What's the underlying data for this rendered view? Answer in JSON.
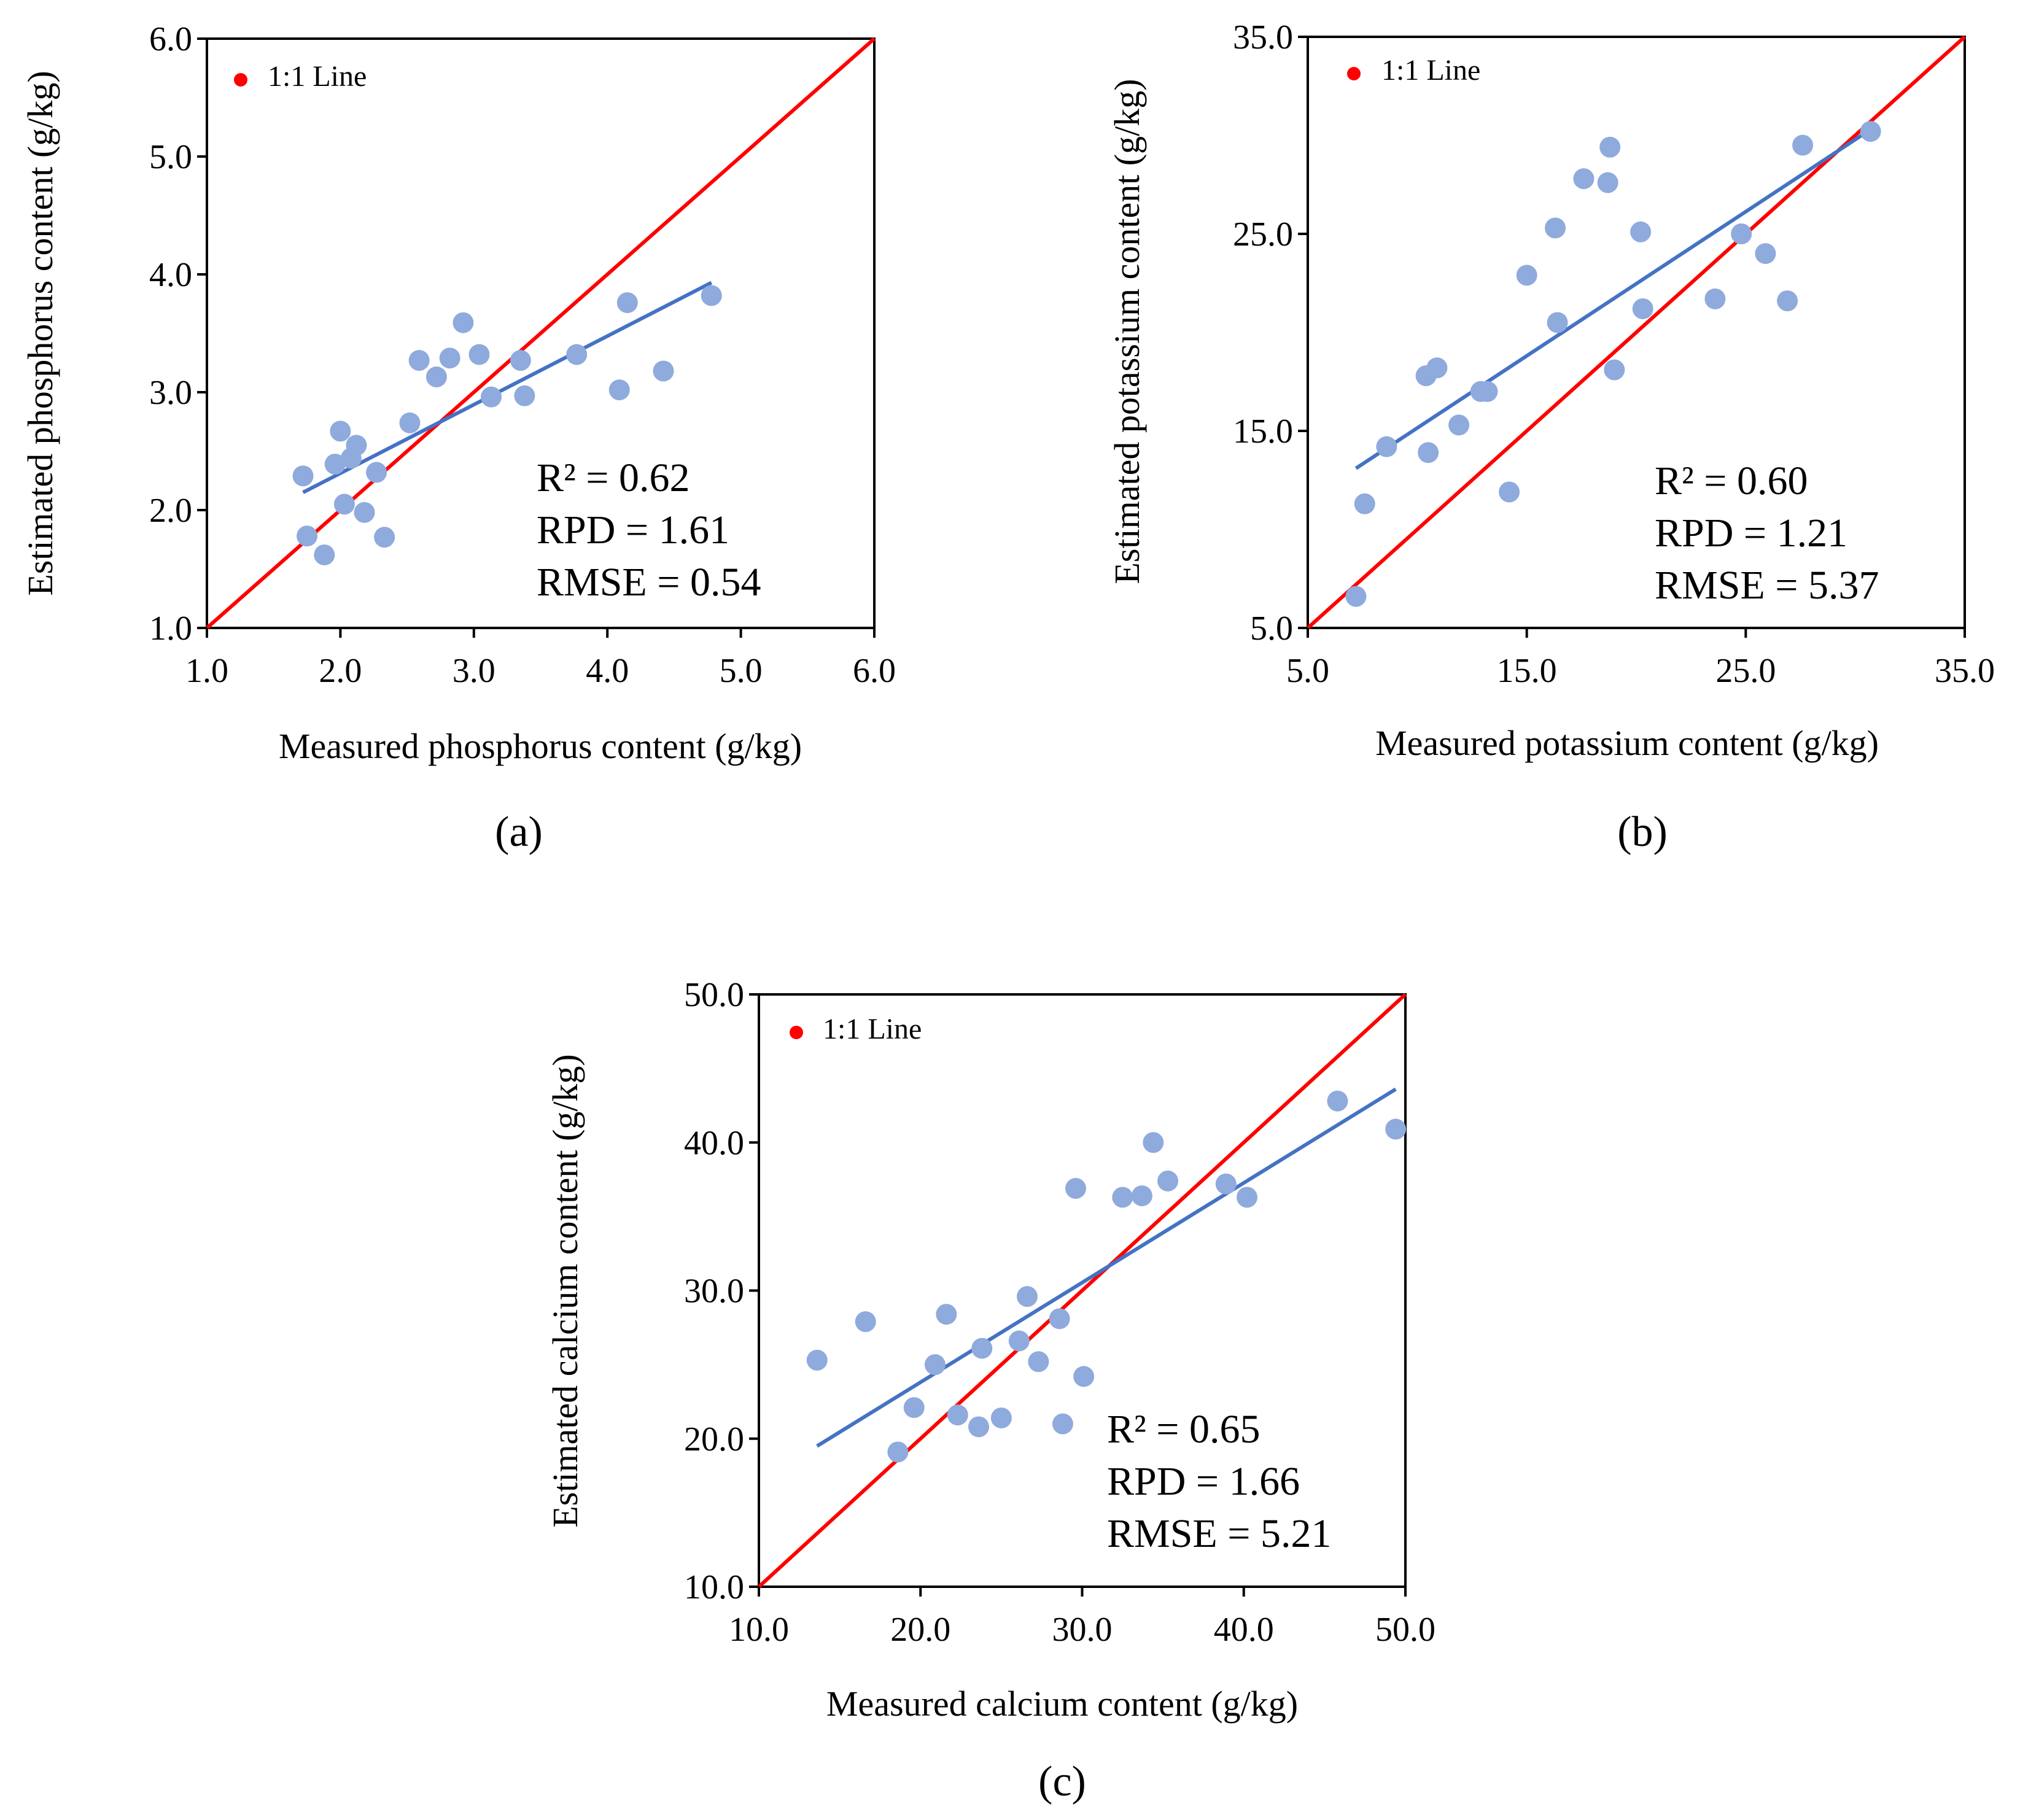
{
  "chart_data": [
    {
      "type": "scatter",
      "panel_label": "(a)",
      "xlabel": "Measured phosphorus content (g/kg)",
      "ylabel": "Estimated phosphorus content (g/kg)",
      "xlim": [
        1.0,
        6.0
      ],
      "ylim": [
        1.0,
        6.0
      ],
      "xticks": [
        "1.0",
        "2.0",
        "3.0",
        "4.0",
        "5.0",
        "6.0"
      ],
      "yticks": [
        "1.0",
        "2.0",
        "3.0",
        "4.0",
        "5.0",
        "6.0"
      ],
      "legend": {
        "label": "1:1 Line",
        "placement": "top-left"
      },
      "stats": [
        "R² = 0.62",
        "RPD = 1.61",
        "RMSE = 0.54"
      ],
      "colors": {
        "points": "#8faadc",
        "fit": "#4472c4",
        "identity": "#ff0000"
      },
      "points": [
        {
          "x": 1.72,
          "y": 2.29
        },
        {
          "x": 1.75,
          "y": 1.78
        },
        {
          "x": 1.88,
          "y": 1.62
        },
        {
          "x": 1.96,
          "y": 2.39
        },
        {
          "x": 2.0,
          "y": 2.67
        },
        {
          "x": 2.03,
          "y": 2.05
        },
        {
          "x": 2.08,
          "y": 2.44
        },
        {
          "x": 2.12,
          "y": 2.55
        },
        {
          "x": 2.18,
          "y": 1.98
        },
        {
          "x": 2.27,
          "y": 2.32
        },
        {
          "x": 2.33,
          "y": 1.77
        },
        {
          "x": 2.52,
          "y": 2.74
        },
        {
          "x": 2.59,
          "y": 3.27
        },
        {
          "x": 2.72,
          "y": 3.13
        },
        {
          "x": 2.82,
          "y": 3.29
        },
        {
          "x": 2.92,
          "y": 3.59
        },
        {
          "x": 3.04,
          "y": 3.32
        },
        {
          "x": 3.13,
          "y": 2.96
        },
        {
          "x": 3.35,
          "y": 3.27
        },
        {
          "x": 3.38,
          "y": 2.97
        },
        {
          "x": 3.77,
          "y": 3.32
        },
        {
          "x": 4.09,
          "y": 3.02
        },
        {
          "x": 4.15,
          "y": 3.76
        },
        {
          "x": 4.42,
          "y": 3.18
        },
        {
          "x": 4.78,
          "y": 3.82
        }
      ],
      "fit_line": [
        [
          1.72,
          2.15
        ],
        [
          4.78,
          3.93
        ]
      ]
    },
    {
      "type": "scatter",
      "panel_label": "(b)",
      "xlabel": "Measured potassium content (g/kg)",
      "ylabel": "Estimated potassium content (g/kg)",
      "xlim": [
        5.0,
        35.0
      ],
      "ylim": [
        5.0,
        35.0
      ],
      "xticks": [
        "5.0",
        "15.0",
        "25.0",
        "35.0"
      ],
      "yticks": [
        "5.0",
        "15.0",
        "25.0",
        "35.0"
      ],
      "legend": {
        "label": "1:1 Line",
        "placement": "top-left"
      },
      "stats": [
        "R² = 0.60",
        "RPD = 1.21",
        "RMSE = 5.37"
      ],
      "colors": {
        "points": "#8faadc",
        "fit": "#4472c4",
        "identity": "#ff0000"
      },
      "points": [
        {
          "x": 7.2,
          "y": 6.6
        },
        {
          "x": 7.6,
          "y": 11.3
        },
        {
          "x": 8.6,
          "y": 14.2
        },
        {
          "x": 10.4,
          "y": 17.8
        },
        {
          "x": 10.5,
          "y": 13.9
        },
        {
          "x": 10.9,
          "y": 18.2
        },
        {
          "x": 11.9,
          "y": 15.3
        },
        {
          "x": 12.9,
          "y": 17.0
        },
        {
          "x": 13.2,
          "y": 17.0
        },
        {
          "x": 14.2,
          "y": 11.9
        },
        {
          "x": 15.0,
          "y": 22.9
        },
        {
          "x": 16.3,
          "y": 25.3
        },
        {
          "x": 16.4,
          "y": 20.5
        },
        {
          "x": 17.6,
          "y": 27.8
        },
        {
          "x": 18.7,
          "y": 27.6
        },
        {
          "x": 18.8,
          "y": 29.4
        },
        {
          "x": 19.0,
          "y": 18.1
        },
        {
          "x": 20.2,
          "y": 25.1
        },
        {
          "x": 20.3,
          "y": 21.2
        },
        {
          "x": 23.6,
          "y": 21.7
        },
        {
          "x": 24.8,
          "y": 25.0
        },
        {
          "x": 25.9,
          "y": 24.0
        },
        {
          "x": 26.9,
          "y": 21.6
        },
        {
          "x": 27.6,
          "y": 29.5
        },
        {
          "x": 30.7,
          "y": 30.2
        }
      ],
      "fit_line": [
        [
          7.2,
          13.1
        ],
        [
          30.7,
          30.3
        ]
      ]
    },
    {
      "type": "scatter",
      "panel_label": "(c)",
      "xlabel": "Measured calcium content (g/kg)",
      "ylabel": "Estimated calcium content (g/kg)",
      "xlim": [
        10.0,
        50.0
      ],
      "ylim": [
        10.0,
        50.0
      ],
      "xticks": [
        "10.0",
        "20.0",
        "30.0",
        "40.0",
        "50.0"
      ],
      "yticks": [
        "10.0",
        "20.0",
        "30.0",
        "40.0",
        "50.0"
      ],
      "legend": {
        "label": "1:1 Line",
        "placement": "top-left"
      },
      "stats": [
        "R² = 0.65",
        "RPD = 1.66",
        "RMSE = 5.21"
      ],
      "colors": {
        "points": "#8faadc",
        "fit": "#4472c4",
        "identity": "#ff0000"
      },
      "points": [
        {
          "x": 13.6,
          "y": 25.3
        },
        {
          "x": 16.6,
          "y": 27.9
        },
        {
          "x": 18.6,
          "y": 19.1
        },
        {
          "x": 19.6,
          "y": 22.1
        },
        {
          "x": 20.9,
          "y": 25.0
        },
        {
          "x": 21.6,
          "y": 28.4
        },
        {
          "x": 22.3,
          "y": 21.6
        },
        {
          "x": 23.6,
          "y": 20.8
        },
        {
          "x": 23.8,
          "y": 26.1
        },
        {
          "x": 25.0,
          "y": 21.4
        },
        {
          "x": 26.1,
          "y": 26.6
        },
        {
          "x": 26.6,
          "y": 29.6
        },
        {
          "x": 27.3,
          "y": 25.2
        },
        {
          "x": 28.6,
          "y": 28.1
        },
        {
          "x": 28.8,
          "y": 21.0
        },
        {
          "x": 29.6,
          "y": 36.9
        },
        {
          "x": 30.1,
          "y": 24.2
        },
        {
          "x": 32.5,
          "y": 36.3
        },
        {
          "x": 33.7,
          "y": 36.4
        },
        {
          "x": 34.4,
          "y": 40.0
        },
        {
          "x": 35.3,
          "y": 37.4
        },
        {
          "x": 38.9,
          "y": 37.2
        },
        {
          "x": 40.2,
          "y": 36.3
        },
        {
          "x": 45.8,
          "y": 42.8
        },
        {
          "x": 49.4,
          "y": 40.9
        }
      ],
      "fit_line": [
        [
          13.6,
          19.5
        ],
        [
          49.4,
          43.6
        ]
      ]
    }
  ]
}
